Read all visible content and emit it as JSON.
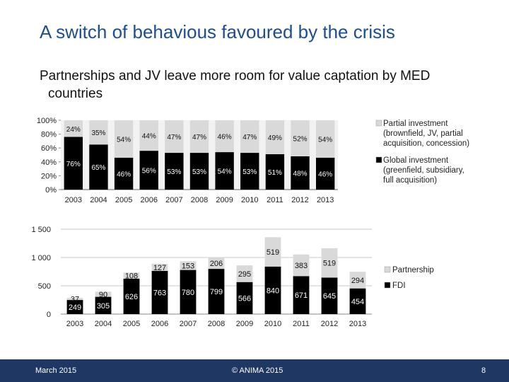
{
  "slide": {
    "title": "A switch of behavious favoured by the crisis",
    "subtitle": "Partnerships and JV leave more room for value captation by MED countries"
  },
  "footer": {
    "date": "March 2015",
    "copyright": "© ANIMA 2015",
    "page": "8"
  },
  "colors": {
    "light": "#d9d9d9",
    "dark": "#000000",
    "footer": "#1f3763",
    "title": "#1f4e8c"
  },
  "chart_data": [
    {
      "type": "bar",
      "stacked": "percent",
      "categories": [
        "2003",
        "2004",
        "2005",
        "2006",
        "2007",
        "2008",
        "2009",
        "2010",
        "2011",
        "2012",
        "2013"
      ],
      "yticks": [
        "0%",
        "20%",
        "40%",
        "60%",
        "80%",
        "100%"
      ],
      "ylim": [
        0,
        100
      ],
      "legend_position": "right",
      "series": [
        {
          "name": "Global investment (greenfield, subsidiary, full acquisition)",
          "color": "#000000",
          "values": [
            76,
            65,
            46,
            56,
            53,
            53,
            54,
            53,
            51,
            48,
            46
          ],
          "labels": [
            "76%",
            "65%",
            "46%",
            "56%",
            "53%",
            "53%",
            "54%",
            "53%",
            "51%",
            "48%",
            "46%"
          ]
        },
        {
          "name": "Partial investment (brownfield, JV, partial acquisition, concession)",
          "color": "#d9d9d9",
          "values": [
            24,
            35,
            54,
            44,
            47,
            47,
            46,
            47,
            49,
            52,
            54
          ],
          "labels": [
            "24%",
            "35%",
            "54%",
            "44%",
            "47%",
            "47%",
            "46%",
            "47%",
            "49%",
            "52%",
            "54%"
          ]
        }
      ]
    },
    {
      "type": "bar",
      "stacked": "value",
      "categories": [
        "2003",
        "2004",
        "2005",
        "2006",
        "2007",
        "2008",
        "2009",
        "2010",
        "2011",
        "2012",
        "2013"
      ],
      "yticks": [
        "0",
        "500",
        "1 000",
        "1 500"
      ],
      "ylim": [
        0,
        1500
      ],
      "grid": true,
      "legend_position": "right",
      "series": [
        {
          "name": "FDI",
          "color": "#000000",
          "values": [
            249,
            305,
            626,
            763,
            780,
            799,
            566,
            840,
            671,
            645,
            454
          ]
        },
        {
          "name": "Partnership",
          "color": "#d9d9d9",
          "values": [
            37,
            90,
            108,
            127,
            153,
            206,
            295,
            519,
            383,
            519,
            294
          ]
        }
      ]
    }
  ]
}
